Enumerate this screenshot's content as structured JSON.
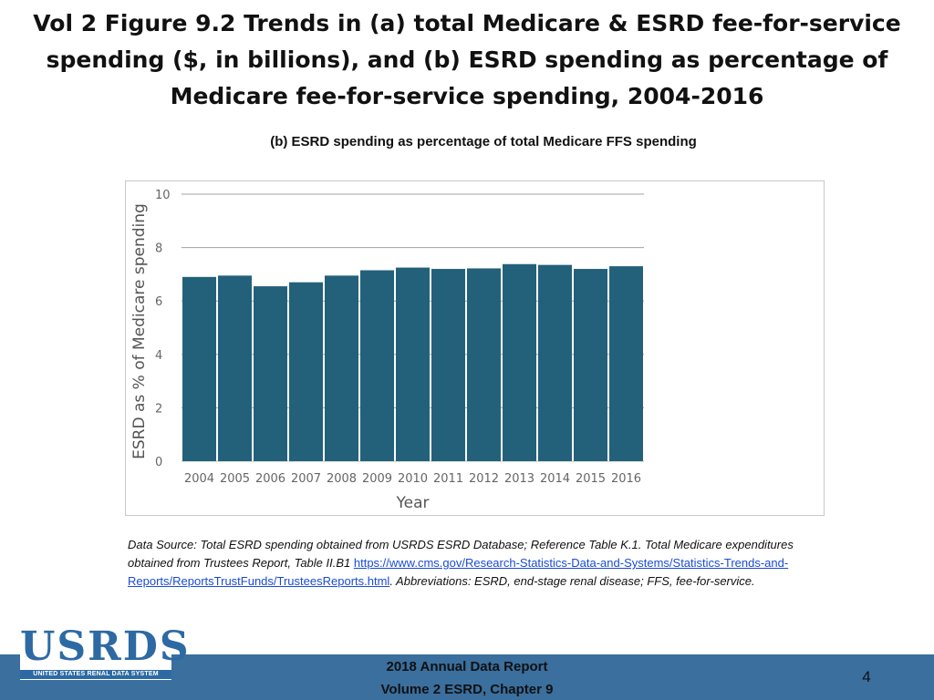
{
  "title": {
    "line1": "Vol 2 Figure 9.2 Trends in (a) total Medicare & ESRD fee-for-service",
    "line2": "spending ($, in billions), and (b) ESRD spending as percentage of",
    "line3": "Medicare fee-for-service spending, 2004-2016"
  },
  "chart_data": {
    "type": "bar",
    "title": "(b) ESRD spending as percentage of total Medicare FFS spending",
    "xlabel": "Year",
    "ylabel": "ESRD as % of Medicare spending",
    "categories": [
      "2004",
      "2005",
      "2006",
      "2007",
      "2008",
      "2009",
      "2010",
      "2011",
      "2012",
      "2013",
      "2014",
      "2015",
      "2016"
    ],
    "values": [
      6.9,
      6.95,
      6.55,
      6.7,
      6.95,
      7.15,
      7.25,
      7.2,
      7.22,
      7.38,
      7.35,
      7.2,
      7.3
    ],
    "ylim": [
      0,
      10
    ],
    "yticks": [
      0,
      2,
      4,
      6,
      8,
      10
    ],
    "grid": true,
    "bar_color": "#23617a"
  },
  "source_note": {
    "text_before": "Data Source: Total ESRD spending obtained from USRDS ESRD Database; Reference Table K.1. Total Medicare expenditures obtained from Trustees Report, Table II.B1 ",
    "link": "https://www.cms.gov/Research-Statistics-Data-and-Systems/Statistics-Trends-and-Reports/ReportsTrustFunds/TrusteesReports.html",
    "text_after": ". Abbreviations: ESRD, end-stage renal disease; FFS, fee-for-service."
  },
  "logo": {
    "text": "USRDS",
    "subtext": "UNITED STATES RENAL DATA SYSTEM"
  },
  "footer": {
    "line1": "2018 Annual Data Report",
    "line2": "Volume 2 ESRD, Chapter 9",
    "page_number": "4"
  },
  "colors": {
    "footer_bar": "#3a6f9e",
    "logo_blue": "#2d6aa3",
    "link": "#1a4bd6"
  }
}
